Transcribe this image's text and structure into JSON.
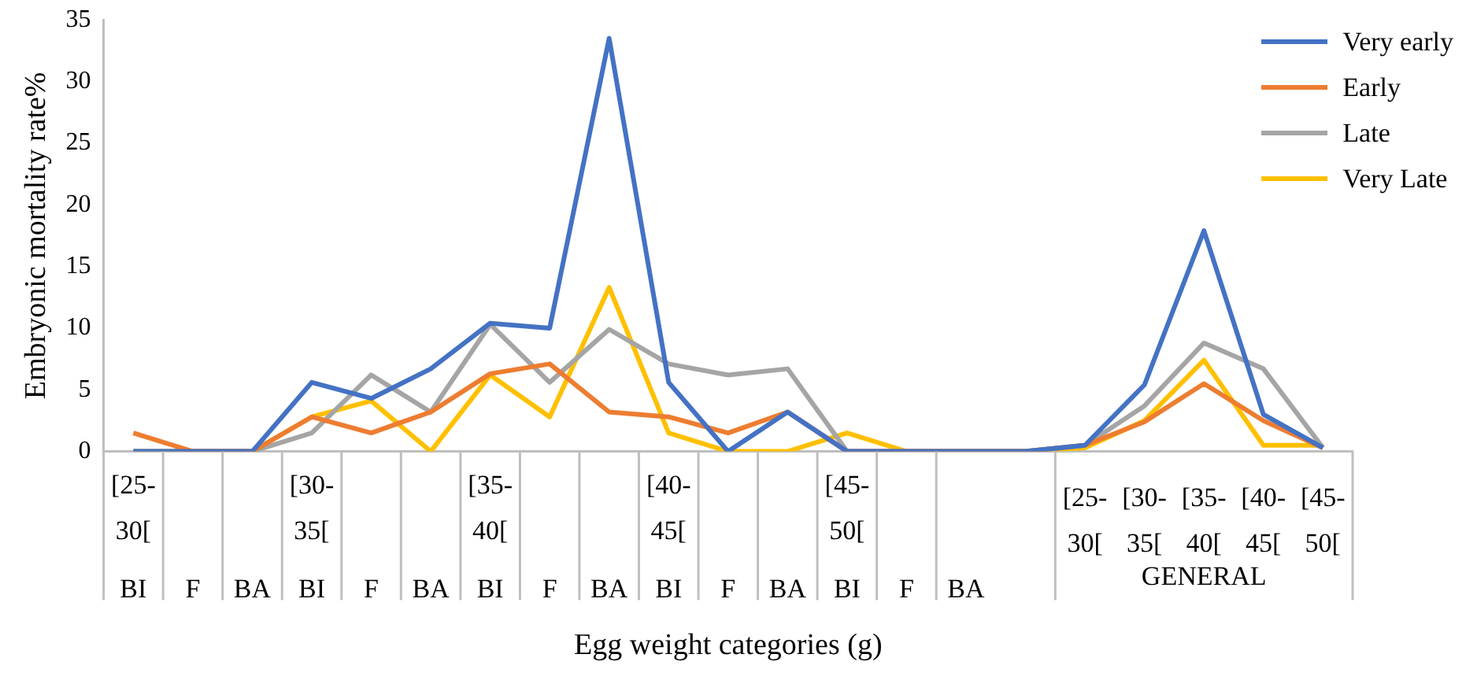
{
  "chart_data": {
    "type": "line",
    "xlabel": "Egg weight categories (g)",
    "ylabel": "Embryonic mortality rate%",
    "categories": [
      "BI",
      "F",
      "BA",
      "BI",
      "F",
      "BA",
      "BI",
      "F",
      "BA",
      "BI",
      "F",
      "BA",
      "BI",
      "F",
      "BA",
      null,
      "[25-30[",
      "[30-35[",
      "[35-40[",
      "[40-45[",
      "[45-50["
    ],
    "series": [
      {
        "name": "Very early",
        "color": "#4472c4",
        "values": [
          0,
          0,
          0,
          5.6,
          4.3,
          6.7,
          10.4,
          10.0,
          33.5,
          5.6,
          0,
          3.2,
          0,
          0,
          0,
          0,
          0.5,
          5.4,
          17.9,
          3.0,
          0.3
        ]
      },
      {
        "name": "Early",
        "color": "#ed7d31",
        "values": [
          1.5,
          0,
          0,
          2.8,
          1.5,
          3.2,
          6.3,
          7.1,
          3.2,
          2.8,
          1.5,
          3.2,
          0,
          0,
          0,
          0,
          0.5,
          2.4,
          5.5,
          2.5,
          0.3
        ]
      },
      {
        "name": "Late",
        "color": "#a5a5a5",
        "values": [
          0,
          0,
          0,
          1.5,
          6.2,
          3.2,
          10.3,
          5.6,
          9.9,
          7.1,
          6.2,
          6.7,
          0,
          0,
          0,
          0,
          0.5,
          3.7,
          8.8,
          6.7,
          0.3
        ]
      },
      {
        "name": "Very Late",
        "color": "#ffc000",
        "values": [
          0,
          0,
          0,
          2.8,
          4.1,
          0,
          6.2,
          2.8,
          13.3,
          1.5,
          0,
          0,
          1.5,
          0,
          0,
          0,
          0.3,
          2.5,
          7.4,
          0.5,
          0.5
        ]
      }
    ],
    "ylim": [
      0,
      35
    ],
    "yticks": [
      0,
      5,
      10,
      15,
      20,
      25,
      30,
      35
    ],
    "grid": false,
    "legend": "top right",
    "marker": "none",
    "line_style": "solid",
    "annotations": [
      "[25-30[",
      "[30-35[",
      "[35-40[",
      "[40-45[",
      "[45-50[",
      "GENERAL"
    ]
  }
}
